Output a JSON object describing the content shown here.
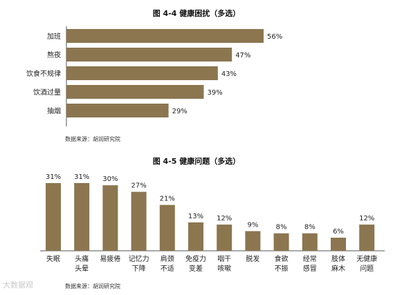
{
  "chart_data": [
    {
      "type": "bar",
      "orientation": "horizontal",
      "title": "图 4-4 健康困扰（多选）",
      "categories": [
        "加班",
        "熬夜",
        "饮食不规律",
        "饮酒过量",
        "抽烟"
      ],
      "values": [
        56,
        47,
        43,
        39,
        29
      ],
      "value_labels": [
        "56%",
        "47%",
        "43%",
        "39%",
        "29%"
      ],
      "unit": "%",
      "xlim": [
        0,
        60
      ],
      "source": "数据来源：胡润研究院",
      "color": "#8b7650"
    },
    {
      "type": "bar",
      "orientation": "vertical",
      "title": "图 4-5 健康问题（多选）",
      "categories": [
        "失眠",
        "头痛\n头晕",
        "易疲倦",
        "记忆力\n下降",
        "肩颈\n不适",
        "免疫力\n变差",
        "咽干\n咳嗽",
        "脱发",
        "食欲\n不振",
        "经常\n感冒",
        "肢体\n麻木",
        "无健康\n问题"
      ],
      "values": [
        31,
        31,
        30,
        27,
        21,
        13,
        12,
        9,
        8,
        8,
        6,
        12
      ],
      "value_labels": [
        "31%",
        "31%",
        "30%",
        "27%",
        "21%",
        "13%",
        "12%",
        "9%",
        "8%",
        "8%",
        "6%",
        "12%"
      ],
      "unit": "%",
      "ylim": [
        0,
        35
      ],
      "source": "数据来源：胡润研究院",
      "color": "#8b7650"
    }
  ],
  "watermark": "大数据观"
}
